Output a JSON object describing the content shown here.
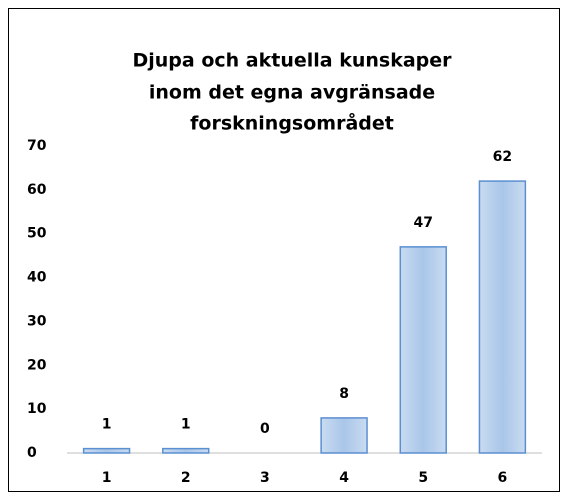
{
  "chart_data": {
    "type": "bar",
    "title": [
      "Djupa och aktuella kunskaper",
      "inom det egna avgränsade",
      "forskningsområdet"
    ],
    "categories": [
      "1",
      "2",
      "3",
      "4",
      "5",
      "6"
    ],
    "values": [
      1,
      1,
      0,
      8,
      47,
      62
    ],
    "color": "#a9c6e9",
    "edge_color": "#5b8fd0",
    "ylim": [
      0,
      70
    ],
    "yticks": [
      0,
      10,
      20,
      30,
      40,
      50,
      60,
      70
    ],
    "grid": false
  }
}
